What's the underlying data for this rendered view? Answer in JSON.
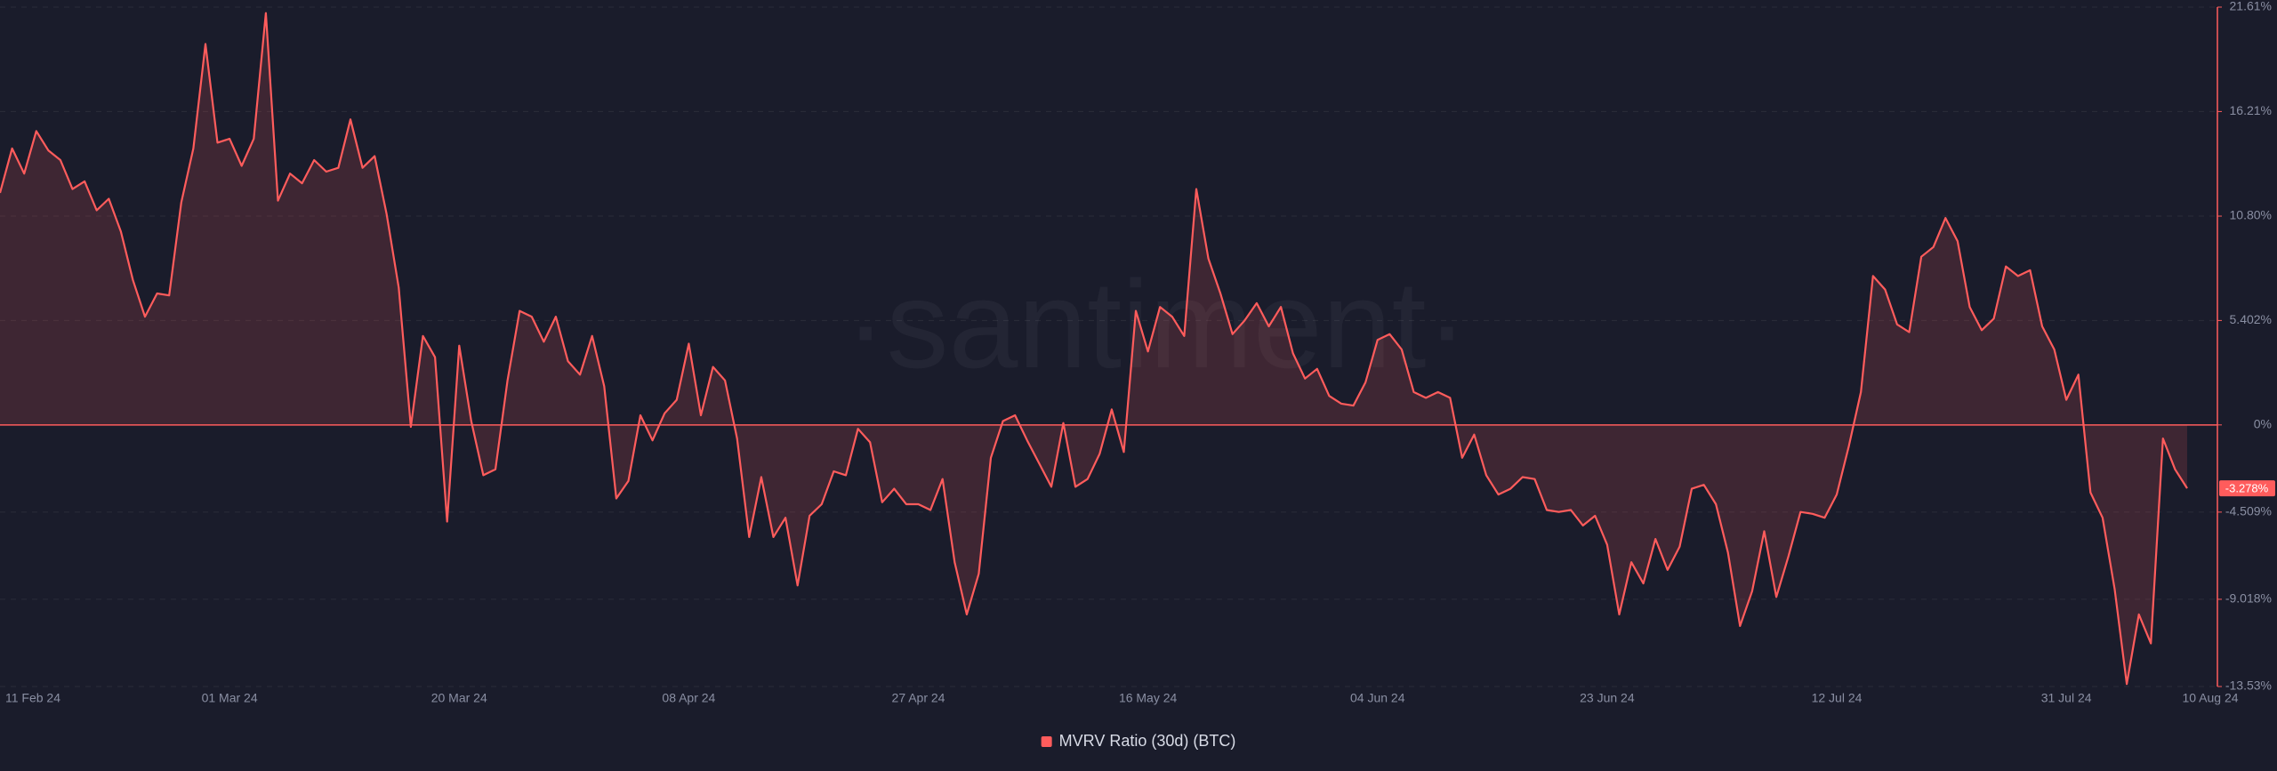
{
  "chart_data": {
    "type": "line",
    "watermark": "·santiment·",
    "categories": [
      "11 Feb 24",
      null,
      null,
      null,
      null,
      null,
      null,
      null,
      null,
      null,
      null,
      null,
      null,
      null,
      null,
      null,
      null,
      null,
      null,
      "01 Mar 24",
      null,
      null,
      null,
      null,
      null,
      null,
      null,
      null,
      null,
      null,
      null,
      null,
      null,
      null,
      null,
      null,
      null,
      null,
      "20 Mar 24",
      null,
      null,
      null,
      null,
      null,
      null,
      null,
      null,
      null,
      null,
      null,
      null,
      null,
      null,
      null,
      null,
      null,
      null,
      "08 Apr 24",
      null,
      null,
      null,
      null,
      null,
      null,
      null,
      null,
      null,
      null,
      null,
      null,
      null,
      null,
      null,
      null,
      null,
      null,
      "27 Apr 24",
      null,
      null,
      null,
      null,
      null,
      null,
      null,
      null,
      null,
      null,
      null,
      null,
      null,
      null,
      null,
      null,
      null,
      null,
      "16 May 24",
      null,
      null,
      null,
      null,
      null,
      null,
      null,
      null,
      null,
      null,
      null,
      null,
      null,
      null,
      null,
      null,
      null,
      null,
      "04 Jun 24",
      null,
      null,
      null,
      null,
      null,
      null,
      null,
      null,
      null,
      null,
      null,
      null,
      null,
      null,
      null,
      null,
      null,
      null,
      "23 Jun 24",
      null,
      null,
      null,
      null,
      null,
      null,
      null,
      null,
      null,
      null,
      null,
      null,
      null,
      null,
      null,
      null,
      null,
      null,
      "12 Jul 24",
      null,
      null,
      null,
      null,
      null,
      null,
      null,
      null,
      null,
      null,
      null,
      null,
      null,
      null,
      null,
      null,
      null,
      null,
      "31 Jul 24",
      null,
      null,
      null,
      null,
      null,
      null,
      null,
      null,
      null,
      "10 Aug 24"
    ],
    "series": [
      {
        "name": "MVRV Ratio (30d) (BTC)",
        "color": "#ff5c5c",
        "last_value_label": "-3.278%",
        "values": [
          12.0,
          14.3,
          13.0,
          15.2,
          14.2,
          13.7,
          12.2,
          12.6,
          11.1,
          11.7,
          10.0,
          7.5,
          5.6,
          6.8,
          6.7,
          11.5,
          14.3,
          19.7,
          14.6,
          14.8,
          13.4,
          14.8,
          21.3,
          11.6,
          13.0,
          12.5,
          13.7,
          13.1,
          13.3,
          15.8,
          13.3,
          13.9,
          10.9,
          7.1,
          -0.1,
          4.6,
          3.5,
          -5.0,
          4.1,
          0.2,
          -2.6,
          -2.3,
          2.3,
          5.9,
          5.6,
          4.3,
          5.6,
          3.3,
          2.6,
          4.6,
          2.0,
          -3.8,
          -2.9,
          0.5,
          -0.8,
          0.6,
          1.3,
          4.2,
          0.5,
          3.0,
          2.3,
          -0.7,
          -5.8,
          -2.7,
          -5.8,
          -4.8,
          -8.3,
          -4.7,
          -4.1,
          -2.4,
          -2.6,
          -0.2,
          -0.9,
          -4.0,
          -3.3,
          -4.1,
          -4.1,
          -4.4,
          -2.8,
          -7.1,
          -9.8,
          -7.7,
          -1.7,
          0.2,
          0.5,
          -0.8,
          -2.0,
          -3.2,
          0.1,
          -3.2,
          -2.8,
          -1.5,
          0.8,
          -1.4,
          5.9,
          3.8,
          6.1,
          5.6,
          4.6,
          12.2,
          8.6,
          6.8,
          4.7,
          5.4,
          6.3,
          5.1,
          6.1,
          3.7,
          2.4,
          2.9,
          1.5,
          1.1,
          1.0,
          2.2,
          4.4,
          4.7,
          3.9,
          1.7,
          1.4,
          1.7,
          1.4,
          -1.7,
          -0.5,
          -2.6,
          -3.6,
          -3.3,
          -2.7,
          -2.8,
          -4.4,
          -4.5,
          -4.4,
          -5.2,
          -4.7,
          -6.2,
          -9.8,
          -7.1,
          -8.2,
          -5.9,
          -7.5,
          -6.3,
          -3.3,
          -3.1,
          -4.1,
          -6.6,
          -10.4,
          -8.6,
          -5.5,
          -8.9,
          -6.8,
          -4.5,
          -4.6,
          -4.8,
          -3.6,
          -1.1,
          1.7,
          7.7,
          7.0,
          5.2,
          4.8,
          8.7,
          9.2,
          10.7,
          9.5,
          6.1,
          4.9,
          5.5,
          8.2,
          7.7,
          8.0,
          5.1,
          3.9,
          1.3,
          2.6,
          -3.5,
          -4.8,
          -8.5,
          -13.4,
          -9.8,
          -11.3,
          -0.7,
          -2.3,
          -3.278
        ]
      }
    ],
    "ylim": [
      -13.53,
      21.61
    ],
    "yticks": [
      {
        "value": 21.61,
        "label": "21.61%"
      },
      {
        "value": 16.21,
        "label": "16.21%"
      },
      {
        "value": 10.8,
        "label": "10.80%"
      },
      {
        "value": 5.402,
        "label": "5.402%"
      },
      {
        "value": 0,
        "label": "0%"
      },
      {
        "value": -4.509,
        "label": "-4.509%"
      },
      {
        "value": -9.018,
        "label": "-9.018%"
      },
      {
        "value": -13.53,
        "label": "-13.53%"
      }
    ],
    "grid": true
  }
}
